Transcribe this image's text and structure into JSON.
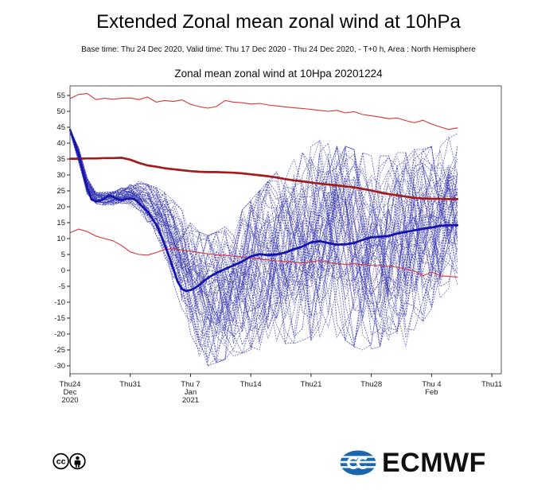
{
  "page": {
    "title": "Extended Zonal mean zonal wind at 10hPa",
    "subtitle": "Base time: Thu 24 Dec 2020, Valid time: Thu 17 Dec 2020 - Thu 24 Dec 2020, - T+0 h, Area : North Hemisphere"
  },
  "footer": {
    "cc_label": "cc",
    "logo_text": "ECMWF",
    "logo_color": "#1b67ae"
  },
  "chart_data": {
    "type": "line",
    "title": "Zonal mean zonal wind at 10Hpa 20201224",
    "xlabel": "",
    "ylabel": "",
    "x_unit": "days since Thu 24 Dec 2020",
    "xlim": [
      0,
      50.1
    ],
    "ylim": [
      -32.5,
      58
    ],
    "grid": false,
    "legend": "none",
    "y_ticks": [
      55,
      50,
      45,
      40,
      35,
      30,
      25,
      20,
      15,
      10,
      5,
      0,
      -5,
      -10,
      -15,
      -20,
      -25,
      -30
    ],
    "x_ticks": [
      {
        "day": 0,
        "lines": [
          "Thu24",
          "Dec",
          "2020"
        ]
      },
      {
        "day": 7,
        "lines": [
          "Thu31"
        ]
      },
      {
        "day": 14,
        "lines": [
          "Thu 7",
          "Jan",
          "2021"
        ]
      },
      {
        "day": 21,
        "lines": [
          "Thu14"
        ]
      },
      {
        "day": 28,
        "lines": [
          "Thu21"
        ]
      },
      {
        "day": 35,
        "lines": [
          "Thu28"
        ]
      },
      {
        "day": 42,
        "lines": [
          "Thu 4",
          "Feb"
        ]
      },
      {
        "day": 49,
        "lines": [
          "Thu11"
        ]
      }
    ],
    "axis_color": "#555555",
    "tick_label_color": "#1a1a1a",
    "series": [
      {
        "name": "climate-upper",
        "color": "#d93434",
        "width": 1.1,
        "dash": "",
        "x_start": 0,
        "x_step": 1,
        "values": [
          54.0,
          55.3,
          55.6,
          53.7,
          54.1,
          53.8,
          54.1,
          54.2,
          53.7,
          54.5,
          52.9,
          53.4,
          53.1,
          53.6,
          52.2,
          51.5,
          51.0,
          51.5,
          53.4,
          52.9,
          52.7,
          52.3,
          52.5,
          52.0,
          51.7,
          51.4,
          51.1,
          50.9,
          50.6,
          50.3,
          50.0,
          50.3,
          49.5,
          49.9,
          49.0,
          48.6,
          48.2,
          47.7,
          47.9,
          47.1,
          46.4,
          47.2,
          46.0,
          45.1,
          44.3,
          44.8
        ]
      },
      {
        "name": "climate-lower",
        "color": "#d93434",
        "width": 1.1,
        "dash": "",
        "x_start": 0,
        "x_step": 1,
        "values": [
          11.8,
          13.0,
          12.2,
          10.8,
          10.0,
          9.3,
          7.8,
          5.8,
          5.0,
          4.8,
          5.6,
          6.6,
          6.8,
          6.4,
          6.0,
          5.6,
          5.2,
          4.9,
          4.7,
          4.5,
          4.1,
          3.8,
          3.6,
          3.3,
          3.0,
          2.8,
          2.5,
          2.3,
          2.7,
          3.1,
          2.5,
          2.1,
          1.9,
          2.1,
          1.8,
          1.6,
          1.5,
          1.3,
          1.0,
          0.4,
          -0.2,
          -1.7,
          -0.5,
          -1.7,
          -1.9,
          -2.1
        ]
      },
      {
        "name": "climate-mean",
        "color": "#a31c1c",
        "width": 2.7,
        "dash": "",
        "x_start": 0,
        "x_step": 1,
        "values": [
          35.1,
          35.1,
          35.2,
          35.2,
          35.3,
          35.3,
          35.4,
          34.8,
          33.8,
          33.0,
          32.6,
          32.1,
          31.8,
          31.5,
          31.2,
          31.0,
          30.9,
          30.9,
          30.8,
          30.7,
          30.5,
          30.2,
          29.9,
          29.6,
          29.2,
          28.7,
          28.3,
          28.0,
          27.6,
          27.3,
          27.0,
          26.7,
          26.4,
          26.1,
          25.6,
          25.1,
          24.5,
          24.0,
          23.6,
          23.2,
          22.8,
          22.6,
          22.5,
          22.5,
          22.4,
          22.4
        ]
      },
      {
        "name": "forecast-mean",
        "color": "#1513ad",
        "width": 2.8,
        "dash": "",
        "points": [
          [
            0,
            44.2
          ],
          [
            0.5,
            40.5
          ],
          [
            1,
            36.5
          ],
          [
            1.5,
            31.0
          ],
          [
            2,
            26.0
          ],
          [
            2.5,
            22.3
          ],
          [
            3,
            21.7
          ],
          [
            3.5,
            21.9
          ],
          [
            4,
            22.6
          ],
          [
            4.5,
            23.6
          ],
          [
            5,
            23.2
          ],
          [
            5.5,
            22.4
          ],
          [
            6,
            22.1
          ],
          [
            6.5,
            22.4
          ],
          [
            7,
            22.6
          ],
          [
            7.5,
            22.4
          ],
          [
            8,
            21.2
          ],
          [
            9,
            18.5
          ],
          [
            10,
            14.5
          ],
          [
            10.5,
            11.5
          ],
          [
            11,
            8.0
          ],
          [
            11.5,
            4.5
          ],
          [
            12,
            0.5
          ],
          [
            12.5,
            -3.5
          ],
          [
            13,
            -5.8
          ],
          [
            13.5,
            -6.5
          ],
          [
            14,
            -6.2
          ],
          [
            14.5,
            -5.6
          ],
          [
            15,
            -4.6
          ],
          [
            16,
            -2.4
          ],
          [
            17,
            -0.8
          ],
          [
            18,
            0.4
          ],
          [
            19,
            1.6
          ],
          [
            20,
            2.8
          ],
          [
            21,
            4.4
          ],
          [
            22,
            5.1
          ],
          [
            23,
            4.8
          ],
          [
            24,
            5.0
          ],
          [
            25,
            5.6
          ],
          [
            26,
            6.6
          ],
          [
            27,
            7.5
          ],
          [
            28,
            8.8
          ],
          [
            29,
            9.2
          ],
          [
            30,
            8.6
          ],
          [
            31,
            8.1
          ],
          [
            32,
            8.2
          ],
          [
            33,
            8.6
          ],
          [
            34,
            9.6
          ],
          [
            35,
            10.4
          ],
          [
            36,
            10.6
          ],
          [
            37,
            10.8
          ],
          [
            38,
            11.6
          ],
          [
            39,
            12.1
          ],
          [
            40,
            12.6
          ],
          [
            41,
            13.1
          ],
          [
            42,
            13.5
          ],
          [
            43,
            14.0
          ],
          [
            44,
            14.2
          ],
          [
            45,
            14.2
          ]
        ]
      }
    ],
    "ensemble": {
      "name": "ensemble-members",
      "count": 51,
      "color": "#3c3cb2",
      "width": 0.75,
      "dash": "2 1.3",
      "opacity": 0.82,
      "seed": 20201224,
      "members_estimated": true,
      "x_start": 0,
      "x_step": 1,
      "envelope_min": [
        43.5,
        34,
        24,
        21,
        20.5,
        20.5,
        20.5,
        20.5,
        19,
        15,
        10,
        4,
        -4,
        -12,
        -20,
        -27,
        -30,
        -29,
        -28,
        -27,
        -26,
        -25,
        -25,
        -24,
        -24,
        -23,
        -23,
        -22,
        -22,
        -21,
        -21,
        -21,
        -22,
        -24,
        -25,
        -26,
        -24,
        -22,
        -20,
        -24,
        -20,
        -16,
        -12,
        -9,
        -6,
        -5
      ],
      "envelope_max": [
        44.5,
        38.5,
        29,
        24.5,
        24.5,
        25,
        26.5,
        27.5,
        28,
        27,
        26,
        24.5,
        22,
        19,
        15,
        12,
        11,
        12,
        14,
        16,
        19,
        22,
        25,
        28,
        31,
        33,
        35,
        37,
        39,
        41,
        40,
        39,
        39,
        38,
        37,
        36,
        36,
        36,
        37,
        37,
        38,
        38,
        39,
        40,
        42,
        43
      ]
    }
  }
}
